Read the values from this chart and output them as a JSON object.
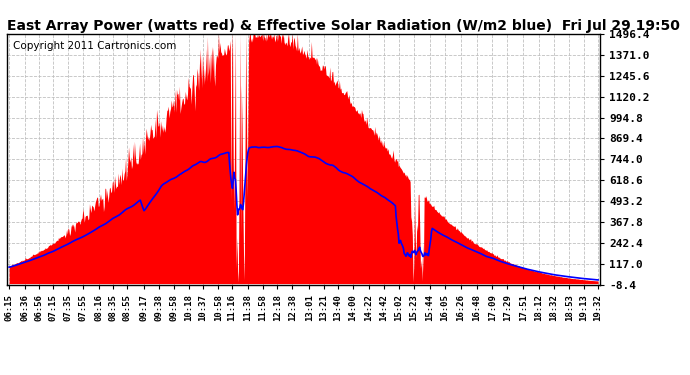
{
  "title": "East Array Power (watts red) & Effective Solar Radiation (W/m2 blue)  Fri Jul 29 19:50",
  "copyright": "Copyright 2011 Cartronics.com",
  "y_ticks": [
    -8.4,
    117.0,
    242.4,
    367.8,
    493.2,
    618.6,
    744.0,
    869.4,
    994.8,
    1120.2,
    1245.6,
    1371.0,
    1496.4
  ],
  "y_min": -8.4,
  "y_max": 1496.4,
  "x_labels": [
    "06:15",
    "06:36",
    "06:56",
    "07:15",
    "07:35",
    "07:55",
    "08:16",
    "08:35",
    "08:55",
    "09:17",
    "09:38",
    "09:58",
    "10:18",
    "10:37",
    "10:58",
    "11:16",
    "11:38",
    "11:58",
    "12:18",
    "12:38",
    "13:01",
    "13:21",
    "13:40",
    "14:00",
    "14:22",
    "14:42",
    "15:02",
    "15:23",
    "15:44",
    "16:05",
    "16:26",
    "16:48",
    "17:09",
    "17:29",
    "17:51",
    "18:12",
    "18:32",
    "18:53",
    "19:13",
    "19:32"
  ],
  "background_color": "#ffffff",
  "fill_color": "#ff0000",
  "line_color": "#0000ff",
  "grid_color": "#c0c0c0",
  "title_fontsize": 10,
  "copyright_fontsize": 7.5
}
